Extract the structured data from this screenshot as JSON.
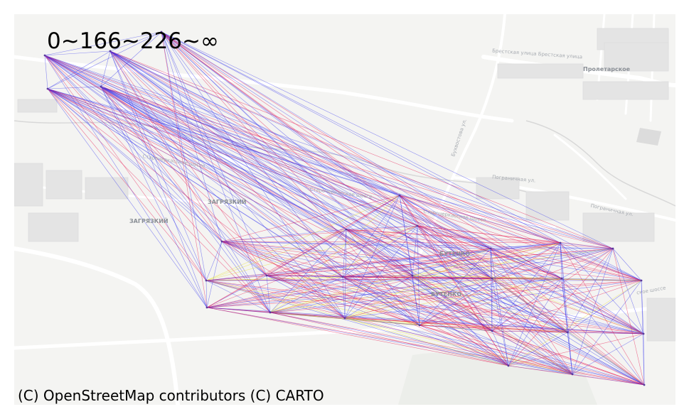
{
  "legend": {
    "title": "0~166~226~∞"
  },
  "attribution": "(C) OpenStreetMap contributors (C) CARTO",
  "places": {
    "proletarskoe": "Пролетарское",
    "zagryazhsky_1": "ЗАГРЯЗКИЙ",
    "zagryazhsky_2": "ЗАГРЯЗКИЙ",
    "butenko_1": "БУТЕНКО",
    "butenko_2": "БУТЕНКО"
  },
  "streets": {
    "brestskaya": "Брестская улица  Брестская улица",
    "starochercasskoe_1": "Старочеркасское шоссе",
    "starochercasskoe_2": "Старочеркасское шоссе",
    "starochercasskoe_3": "Старочеркасское шоссе",
    "pogranichnaya_1": "Пограничная ул.",
    "pogranichnaya_2": "Пограничная ул.",
    "bukhvostova": "Бухвостова ул.",
    "shosse_right": "ское шоссе"
  },
  "colors": {
    "background": "#f4f4f2",
    "low": "#3333ee",
    "mid": "#e8e020",
    "high": "#e8104a",
    "road": "#ffffff",
    "block": "#dcdcdc"
  },
  "edges": {
    "color_bins": [
      0,
      166,
      226,
      "∞"
    ],
    "nodes": [
      "n1",
      "n2",
      "n3",
      "n4",
      "n5",
      "n6",
      "n7",
      "n8",
      "n9",
      "n10",
      "n11",
      "n12",
      "n13",
      "n14",
      "n15",
      "n16",
      "n17",
      "n18",
      "n19",
      "n20",
      "n21",
      "n22",
      "n23",
      "n24",
      "n25",
      "n26",
      "n27",
      "n28",
      "n29"
    ]
  }
}
